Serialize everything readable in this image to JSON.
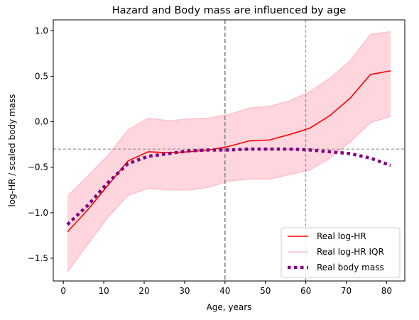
{
  "chart_data": {
    "type": "line",
    "title": "Hazard and Body mass are influenced by age",
    "xlabel": "Age, years",
    "ylabel": "log-HR / scaled body mass",
    "xlim": [
      -2.5,
      84.5
    ],
    "ylim": [
      -1.75,
      1.12
    ],
    "xticks": [
      0,
      10,
      20,
      30,
      40,
      50,
      60,
      70,
      80
    ],
    "yticks": [
      -1.5,
      -1.0,
      -0.5,
      0.0,
      0.5,
      1.0
    ],
    "ytick_labels": [
      "−1.5",
      "−1.0",
      "−0.5",
      "0.0",
      "0.5",
      "1.0"
    ],
    "x": [
      1,
      6,
      11,
      16,
      21,
      26,
      31,
      36,
      41,
      46,
      51,
      56,
      61,
      66,
      71,
      76,
      81
    ],
    "series": [
      {
        "name": "Real log-HR",
        "style": "line",
        "color": "#ff0000",
        "values": [
          -1.21,
          -0.97,
          -0.7,
          -0.43,
          -0.33,
          -0.34,
          -0.33,
          -0.31,
          -0.27,
          -0.21,
          -0.2,
          -0.14,
          -0.07,
          0.07,
          0.26,
          0.52,
          0.56
        ]
      },
      {
        "name": "Real log-HR IQR",
        "style": "band",
        "color": "#ffc0cb",
        "lower": [
          -1.65,
          -1.35,
          -1.05,
          -0.81,
          -0.73,
          -0.75,
          -0.75,
          -0.72,
          -0.65,
          -0.63,
          -0.63,
          -0.58,
          -0.53,
          -0.4,
          -0.22,
          -0.01,
          0.06
        ],
        "upper": [
          -0.82,
          -0.6,
          -0.37,
          -0.09,
          0.04,
          0.01,
          0.03,
          0.04,
          0.08,
          0.15,
          0.17,
          0.23,
          0.33,
          0.48,
          0.67,
          0.96,
          0.99
        ]
      },
      {
        "name": "Real body mass",
        "style": "dotted",
        "color": "#800080",
        "values": [
          -1.13,
          -0.92,
          -0.67,
          -0.46,
          -0.38,
          -0.35,
          -0.32,
          -0.31,
          -0.31,
          -0.3,
          -0.3,
          -0.3,
          -0.31,
          -0.33,
          -0.35,
          -0.4,
          -0.48
        ]
      }
    ],
    "reference_lines": [
      {
        "orientation": "vertical",
        "value": 40,
        "color": "#808080",
        "dash": "long"
      },
      {
        "orientation": "vertical",
        "value": 60,
        "color": "#808080",
        "dash": "short"
      },
      {
        "orientation": "horizontal",
        "value": -0.3,
        "color": "#808080",
        "dash": "short"
      }
    ],
    "legend": {
      "position": "lower-right",
      "entries": [
        "Real log-HR",
        "Real log-HR IQR",
        "Real body mass"
      ]
    },
    "grid": false
  }
}
